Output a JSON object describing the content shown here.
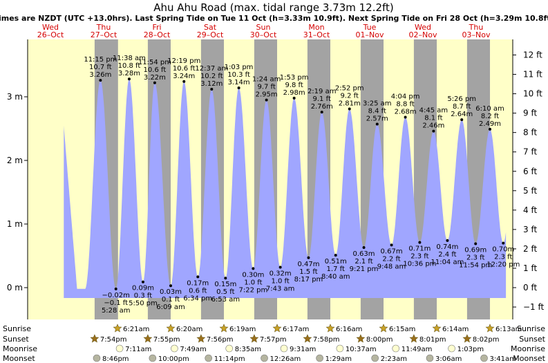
{
  "title": "Ahu Ahu Road (max. tidal range 3.73m 12.2ft)",
  "subtitle": "Times are NZDT (UTC +13.0hrs). Last Spring Tide on Tue 11 Oct (h=3.33m 10.9ft). Next Spring Tide on Fri 28 Oct (h=3.29m 10.8ft)",
  "days": [
    {
      "dow": "Wed",
      "date": "26–Oct"
    },
    {
      "dow": "Thu",
      "date": "27–Oct"
    },
    {
      "dow": "Fri",
      "date": "28–Oct"
    },
    {
      "dow": "Sat",
      "date": "29–Oct"
    },
    {
      "dow": "Sun",
      "date": "30–Oct"
    },
    {
      "dow": "Mon",
      "date": "31–Oct"
    },
    {
      "dow": "Tue",
      "date": "01–Nov"
    },
    {
      "dow": "Wed",
      "date": "02–Nov"
    },
    {
      "dow": "Thu",
      "date": "03–Nov"
    }
  ],
  "chart_data": {
    "type": "area",
    "title": "Ahu Ahu Road (max. tidal range 3.73m 12.2ft)",
    "y_left_unit": "m",
    "y_left_ticks": [
      "0 m",
      "1 m",
      "2 m",
      "3 m"
    ],
    "y_left_values": [
      0,
      1,
      2,
      3
    ],
    "y_right_ticks": [
      "−1 ft",
      "0 ft",
      "1 ft",
      "2 ft",
      "3 ft",
      "4 ft",
      "5 ft",
      "6 ft",
      "7 ft",
      "8 ft",
      "9 ft",
      "10 ft",
      "11 ft",
      "12 ft"
    ],
    "y_right_values": [
      -1,
      0,
      1,
      2,
      3,
      4,
      5,
      6,
      7,
      8,
      9,
      10,
      11,
      12
    ],
    "ylim_m": [
      -0.18,
      3.92
    ],
    "series_color": "#a0a6ff",
    "tides": [
      {
        "day": 0.94,
        "type": "high",
        "time": "11:15 pm",
        "ft": "10.7 ft",
        "m": 3.26
      },
      {
        "day": 1.23,
        "type": "low",
        "time": "5:28 am",
        "ft": "−0.1 ft",
        "m": -0.02
      },
      {
        "day": 1.48,
        "type": "high",
        "time": "11:38 am",
        "ft": "10.8 ft",
        "m": 3.28
      },
      {
        "day": 1.74,
        "type": "low",
        "time": "5:50 pm",
        "ft": "0.3 ft",
        "m": 0.09
      },
      {
        "day": 1.96,
        "type": "high",
        "time": "11:54 pm",
        "ft": "10.6 ft",
        "m": 3.22
      },
      {
        "day": 2.26,
        "type": "low",
        "time": "6:09 am",
        "ft": "0.1 ft",
        "m": 0.03
      },
      {
        "day": 2.51,
        "type": "high",
        "time": "12:19 pm",
        "ft": "10.6 ft",
        "m": 3.24
      },
      {
        "day": 2.77,
        "type": "low",
        "time": "6:34 pm",
        "ft": "0.6 ft",
        "m": 0.17
      },
      {
        "day": 3.03,
        "type": "high",
        "time": "12:37 am",
        "ft": "10.2 ft",
        "m": 3.12
      },
      {
        "day": 3.29,
        "type": "low",
        "time": "6:53 am",
        "ft": "0.5 ft",
        "m": 0.15
      },
      {
        "day": 3.54,
        "type": "high",
        "time": "1:03 pm",
        "ft": "10.3 ft",
        "m": 3.14
      },
      {
        "day": 3.81,
        "type": "low",
        "time": "7:22 pm",
        "ft": "1.0 ft",
        "m": 0.3
      },
      {
        "day": 4.06,
        "type": "high",
        "time": "1:24 am",
        "ft": "9.7 ft",
        "m": 2.95
      },
      {
        "day": 4.32,
        "type": "low",
        "time": "7:43 am",
        "ft": "1.0 ft",
        "m": 0.32
      },
      {
        "day": 4.58,
        "type": "high",
        "time": "1:53 pm",
        "ft": "9.8 ft",
        "m": 2.98
      },
      {
        "day": 4.85,
        "type": "low",
        "time": "8:17 pm",
        "ft": "1.5 ft",
        "m": 0.47
      },
      {
        "day": 5.1,
        "type": "high",
        "time": "2:19 am",
        "ft": "9.1 ft",
        "m": 2.76
      },
      {
        "day": 5.36,
        "type": "low",
        "time": "8:40 am",
        "ft": "1.7 ft",
        "m": 0.51
      },
      {
        "day": 5.62,
        "type": "high",
        "time": "2:52 pm",
        "ft": "9.2 ft",
        "m": 2.81
      },
      {
        "day": 5.89,
        "type": "low",
        "time": "9:21 pm",
        "ft": "2.1 ft",
        "m": 0.63
      },
      {
        "day": 6.14,
        "type": "high",
        "time": "3:25 am",
        "ft": "8.4 ft",
        "m": 2.57
      },
      {
        "day": 6.41,
        "type": "low",
        "time": "9:48 am",
        "ft": "2.2 ft",
        "m": 0.67
      },
      {
        "day": 6.67,
        "type": "high",
        "time": "4:04 pm",
        "ft": "8.8 ft",
        "m": 2.68
      },
      {
        "day": 6.94,
        "type": "low",
        "time": "10:36 pm",
        "ft": "2.3 ft",
        "m": 0.71
      },
      {
        "day": 7.2,
        "type": "high",
        "time": "4:45 am",
        "ft": "8.1 ft",
        "m": 2.46
      },
      {
        "day": 7.46,
        "type": "low",
        "time": "11:04 am",
        "ft": "2.4 ft",
        "m": 0.74
      },
      {
        "day": 7.73,
        "type": "high",
        "time": "5:26 pm",
        "ft": "8.7 ft",
        "m": 2.64
      },
      {
        "day": 7.99,
        "type": "low",
        "time": "11:54 pm",
        "ft": "2.3 ft",
        "m": 0.69
      },
      {
        "day": 8.26,
        "type": "high",
        "time": "6:10 am",
        "ft": "8.2 ft",
        "m": 2.49
      },
      {
        "day": 8.51,
        "type": "low",
        "time": "12:20 pm",
        "ft": "2.3 ft",
        "m": 0.7
      }
    ],
    "nights": [
      {
        "set": 0.83,
        "rise": 1.27
      },
      {
        "set": 1.83,
        "rise": 2.26
      },
      {
        "set": 2.83,
        "rise": 3.26
      },
      {
        "set": 3.83,
        "rise": 4.26
      },
      {
        "set": 4.83,
        "rise": 5.26
      },
      {
        "set": 5.83,
        "rise": 6.26
      },
      {
        "set": 6.83,
        "rise": 7.26
      },
      {
        "set": 7.83,
        "rise": 8.26
      },
      {
        "set": 8.84,
        "rise": 9.26
      }
    ]
  },
  "astro": {
    "row_labels": {
      "sunrise": "Sunrise",
      "sunset": "Sunset",
      "moonrise": "Moonrise",
      "moonset": "Moonset"
    },
    "sunrise": [
      {
        "day": 1.26,
        "time": "6:21am"
      },
      {
        "day": 2.26,
        "time": "6:20am"
      },
      {
        "day": 3.26,
        "time": "6:19am"
      },
      {
        "day": 4.26,
        "time": "6:17am"
      },
      {
        "day": 5.26,
        "time": "6:16am"
      },
      {
        "day": 6.26,
        "time": "6:15am"
      },
      {
        "day": 7.26,
        "time": "6:14am"
      },
      {
        "day": 8.26,
        "time": "6:13am"
      }
    ],
    "sunset": [
      {
        "day": 0.83,
        "time": "7:54pm"
      },
      {
        "day": 1.83,
        "time": "7:55pm"
      },
      {
        "day": 2.83,
        "time": "7:56pm"
      },
      {
        "day": 3.83,
        "time": "7:57pm"
      },
      {
        "day": 4.83,
        "time": "7:58pm"
      },
      {
        "day": 5.83,
        "time": "8:00pm"
      },
      {
        "day": 6.83,
        "time": "8:01pm"
      },
      {
        "day": 7.83,
        "time": "8:02pm"
      }
    ],
    "moonrise": [
      {
        "day": 1.3,
        "time": "7:11am"
      },
      {
        "day": 2.33,
        "time": "7:49am"
      },
      {
        "day": 3.36,
        "time": "8:35am"
      },
      {
        "day": 4.39,
        "time": "9:31am"
      },
      {
        "day": 5.44,
        "time": "10:37am"
      },
      {
        "day": 6.49,
        "time": "11:49am"
      },
      {
        "day": 7.54,
        "time": "1:03pm"
      }
    ],
    "moonset": [
      {
        "day": 0.87,
        "time": "8:46pm"
      },
      {
        "day": 1.92,
        "time": "10:00pm"
      },
      {
        "day": 2.97,
        "time": "11:14pm"
      },
      {
        "day": 4.02,
        "time": "12:26am"
      },
      {
        "day": 5.06,
        "time": "1:29am"
      },
      {
        "day": 6.1,
        "time": "2:23am"
      },
      {
        "day": 7.13,
        "time": "3:06am"
      },
      {
        "day": 8.15,
        "time": "3:41am"
      }
    ]
  }
}
